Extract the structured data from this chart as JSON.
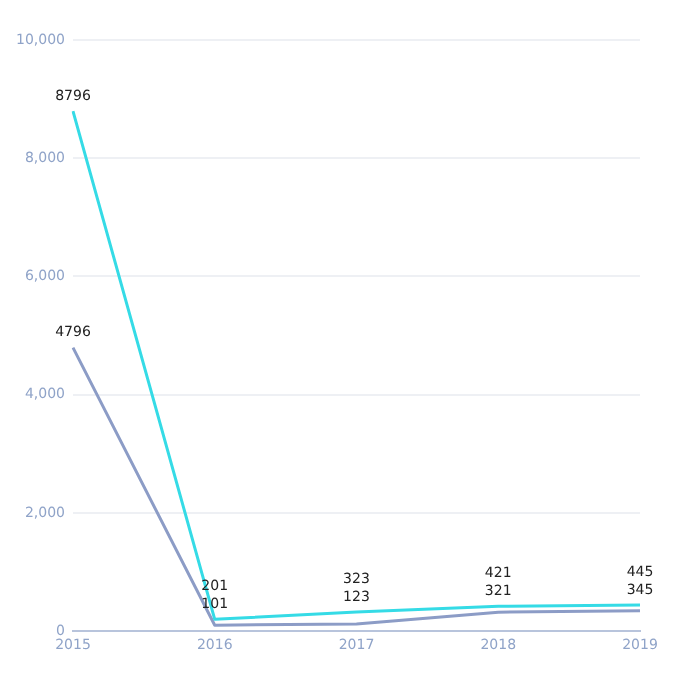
{
  "chart_data": {
    "type": "line",
    "categories": [
      "2015",
      "2016",
      "2017",
      "2018",
      "2019"
    ],
    "series": [
      {
        "color": "#35dbe6",
        "values": [
          8796,
          201,
          323,
          421,
          445
        ]
      },
      {
        "color": "#8c9cc6",
        "values": [
          4796,
          101,
          123,
          321,
          345
        ]
      }
    ],
    "ylim": [
      0,
      10000
    ],
    "yticks": [
      {
        "value": 0,
        "label": "0"
      },
      {
        "value": 2000,
        "label": "2,000"
      },
      {
        "value": 4000,
        "label": "4,000"
      },
      {
        "value": 6000,
        "label": "6,000"
      },
      {
        "value": 8000,
        "label": "8,000"
      },
      {
        "value": 10000,
        "label": "10,000"
      }
    ],
    "grid": "y",
    "legend": false,
    "marker": "none",
    "line_style": "solid",
    "data_labels": true
  }
}
